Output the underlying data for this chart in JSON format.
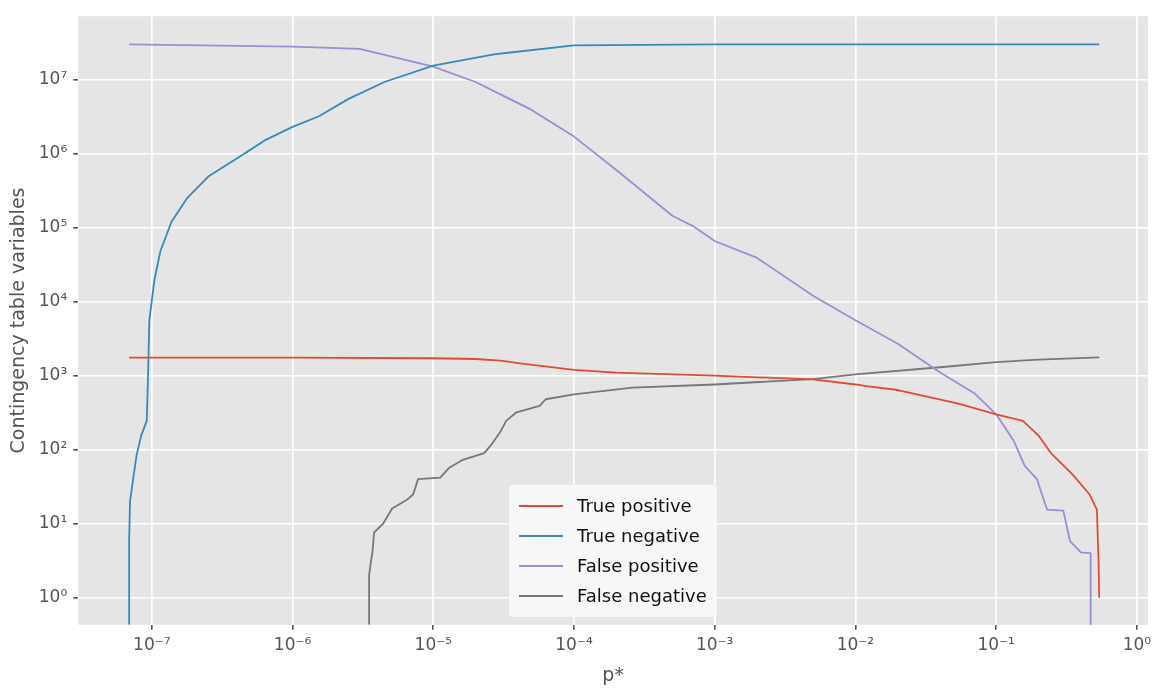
{
  "chart_data": {
    "type": "line",
    "xlabel": "p*",
    "ylabel": "Contingency table variables",
    "log": "xy",
    "grid": true,
    "legend": "bottom",
    "marker": "none",
    "xlim": [
      3.2e-08,
      1.2
    ],
    "ylim": [
      0.43,
      72000000.0
    ],
    "xticks": [
      {
        "value": 1e-07,
        "label": "10⁻⁷"
      },
      {
        "value": 1e-06,
        "label": "10⁻⁶"
      },
      {
        "value": 1e-05,
        "label": "10⁻⁵"
      },
      {
        "value": 0.0001,
        "label": "10⁻⁴"
      },
      {
        "value": 0.001,
        "label": "10⁻³"
      },
      {
        "value": 0.01,
        "label": "10⁻²"
      },
      {
        "value": 0.1,
        "label": "10⁻¹"
      },
      {
        "value": 1,
        "label": "10⁰"
      }
    ],
    "yticks": [
      {
        "value": 1,
        "label": "10⁰"
      },
      {
        "value": 10,
        "label": "10¹"
      },
      {
        "value": 100,
        "label": "10²"
      },
      {
        "value": 1000,
        "label": "10³"
      },
      {
        "value": 10000,
        "label": "10⁴"
      },
      {
        "value": 100000,
        "label": "10⁵"
      },
      {
        "value": 1000000,
        "label": "10⁶"
      },
      {
        "value": 10000000,
        "label": "10⁷"
      }
    ],
    "series": [
      {
        "name": "True positive",
        "color": "#e24a33",
        "x": [
          6.9e-08,
          1e-06,
          1e-05,
          2e-05,
          3e-05,
          4e-05,
          0.0001,
          0.0002,
          0.001,
          0.005,
          0.01,
          0.012,
          0.02,
          0.054,
          0.1,
          0.155,
          0.2,
          0.245,
          0.35,
          0.46,
          0.52,
          0.535,
          0.54
        ],
        "values": [
          1750,
          1750,
          1720,
          1680,
          1600,
          1480,
          1200,
          1100,
          1000,
          890,
          760,
          720,
          640,
          420,
          300,
          245,
          155,
          90,
          46,
          25,
          15.5,
          2.8,
          1
        ]
      },
      {
        "name": "True negative",
        "color": "#348abd",
        "x": [
          6.9e-08,
          6.9e-08,
          7e-08,
          7.4e-08,
          7.8e-08,
          8.4e-08,
          9.2e-08,
          9.4e-08,
          9.6e-08,
          1.04e-07,
          1.15e-07,
          1.38e-07,
          1.78e-07,
          2.55e-07,
          4.2e-07,
          6.5e-07,
          1e-06,
          1.54e-06,
          2.5e-06,
          4.5e-06,
          1e-05,
          2.7e-05,
          0.0001,
          0.001,
          0.54
        ],
        "values": [
          0.43,
          5.9,
          20,
          43,
          85,
          155,
          245,
          1000,
          5600,
          19000,
          48000,
          120000,
          250000,
          500000,
          910000,
          1550000,
          2300000,
          3200000,
          5500000,
          9300000,
          15500000,
          22000000,
          29000000,
          30000000,
          30000000
        ]
      },
      {
        "name": "False positive",
        "color": "#988ed5",
        "x": [
          6.9e-08,
          1e-06,
          3e-06,
          1e-05,
          2e-05,
          5e-05,
          0.0001,
          0.0002,
          0.0005,
          0.0007,
          0.001,
          0.002,
          0.005,
          0.01,
          0.02,
          0.04,
          0.07,
          0.1,
          0.133,
          0.16,
          0.195,
          0.23,
          0.3,
          0.335,
          0.4,
          0.46,
          0.47,
          0.47
        ],
        "values": [
          30000000,
          28000000,
          26000000,
          15000000,
          9300000,
          3900000,
          1700000,
          600000,
          145000,
          105000,
          66000,
          39000,
          12000,
          5600,
          2700,
          1100,
          580,
          300,
          133,
          60,
          40,
          15.5,
          15,
          5.8,
          4.1,
          4,
          4,
          0.43
        ]
      },
      {
        "name": "False negative",
        "color": "#777777",
        "x": [
          3.5e-06,
          3.5e-06,
          3.6e-06,
          3.7e-06,
          3.8e-06,
          4.4e-06,
          5.1e-06,
          6.5e-06,
          7.2e-06,
          7.8e-06,
          1.12e-05,
          1.3e-05,
          1.6e-05,
          2.3e-05,
          2.6e-05,
          3e-05,
          3.3e-05,
          3.9e-05,
          5.7e-05,
          6.3e-05,
          0.0001,
          0.00026,
          0.001,
          0.005,
          0.01,
          0.04,
          0.1,
          0.2,
          0.54
        ],
        "values": [
          0.43,
          2,
          3,
          4.2,
          7.6,
          10,
          16,
          21,
          25,
          40,
          42,
          57,
          72,
          90,
          118,
          175,
          245,
          320,
          390,
          480,
          560,
          690,
          760,
          900,
          1040,
          1300,
          1520,
          1650,
          1770
        ]
      }
    ]
  }
}
